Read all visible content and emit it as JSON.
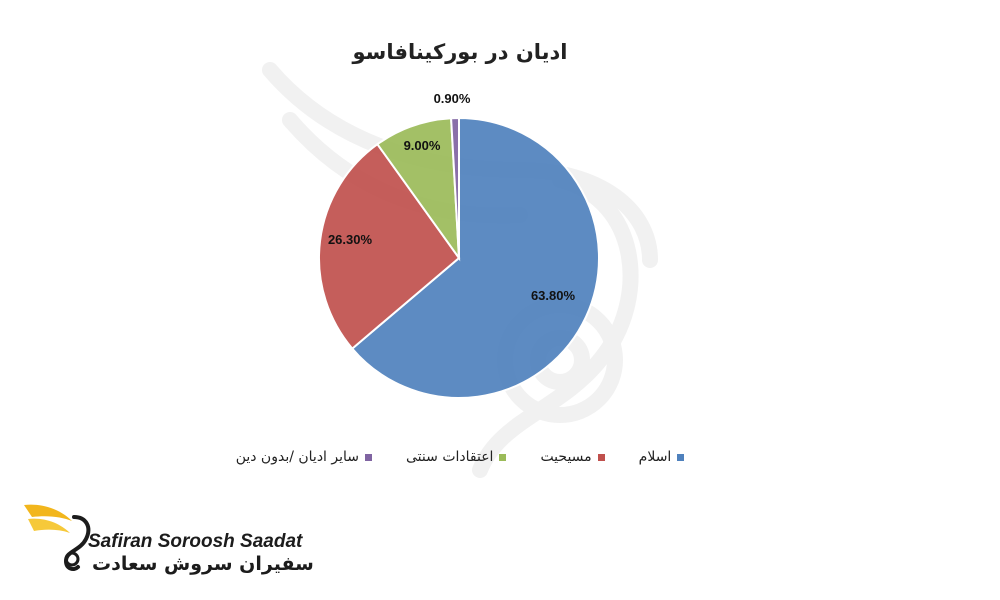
{
  "chart_data": {
    "type": "pie",
    "title": "ادیان در بورکینافاسو",
    "categories": [
      "اسلام",
      "مسیحیت",
      "اعتقادات سنتی",
      "سایر ادیان /بدون دین"
    ],
    "values": [
      63.8,
      26.3,
      9.0,
      0.9
    ],
    "data_labels": [
      "63.80%",
      "26.30%",
      "9.00%",
      "0.90%"
    ],
    "colors": [
      "#4f81bd",
      "#c0504d",
      "#9bbb59",
      "#8064a2"
    ],
    "legend_position": "bottom"
  },
  "logo": {
    "name_en": "Safiran Soroosh Saadat",
    "name_fa": "سفیران سروش سعادت"
  }
}
